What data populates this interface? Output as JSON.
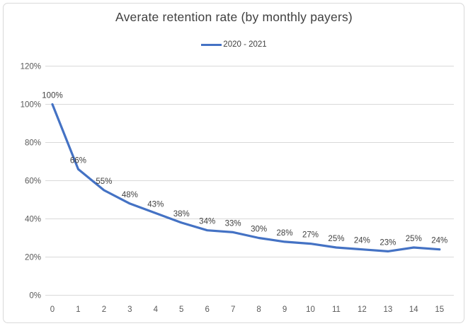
{
  "chart_data": {
    "type": "line",
    "title": "Averate retention rate (by monthly payers)",
    "legend": {
      "position": "top",
      "entries": [
        "2020 - 2021"
      ]
    },
    "categories": [
      "0",
      "1",
      "2",
      "3",
      "4",
      "5",
      "6",
      "7",
      "8",
      "9",
      "10",
      "11",
      "12",
      "13",
      "14",
      "15"
    ],
    "series": [
      {
        "name": "2020 - 2021",
        "values": [
          100,
          66,
          55,
          48,
          43,
          38,
          34,
          33,
          30,
          28,
          27,
          25,
          24,
          23,
          25,
          24
        ],
        "data_labels": [
          "100%",
          "66%",
          "55%",
          "48%",
          "43%",
          "38%",
          "34%",
          "33%",
          "30%",
          "28%",
          "27%",
          "25%",
          "24%",
          "23%",
          "25%",
          "24%"
        ]
      }
    ],
    "xlabel": "",
    "ylabel": "",
    "y_ticks": [
      "0%",
      "20%",
      "40%",
      "60%",
      "80%",
      "100%",
      "120%"
    ],
    "ylim": [
      0,
      120
    ],
    "grid": true,
    "colors": {
      "line": "#4472C4",
      "gridline": "#D9D9D9",
      "axis_text": "#595959",
      "label_text": "#404040",
      "title_text": "#404040",
      "frame_border": "#D9D9D9",
      "background": "#FFFFFF"
    }
  }
}
